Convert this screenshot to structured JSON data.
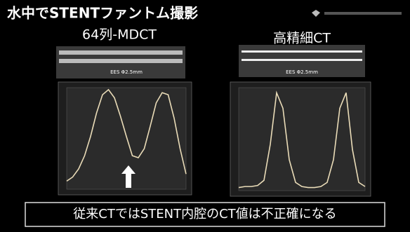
{
  "slide": {
    "title": "水中でSTENTファントム撮影",
    "caption": "従来CTではSTENT内腔のCT値は不正確になる"
  },
  "chart_data": [
    {
      "type": "line",
      "title": "64列-MDCT",
      "subtitle": "EES Φ2.5mm",
      "color": "#eadcb8",
      "x": [
        0,
        1,
        2,
        3,
        4,
        5,
        6,
        7,
        8,
        9,
        10,
        11,
        12,
        13,
        14,
        15,
        16,
        17,
        18,
        19,
        20
      ],
      "values": [
        80,
        120,
        200,
        330,
        520,
        750,
        930,
        980,
        900,
        720,
        520,
        330,
        310,
        400,
        620,
        850,
        950,
        930,
        700,
        400,
        150
      ],
      "xlim": [
        0,
        20
      ],
      "ylim": [
        0,
        1000
      ]
    },
    {
      "type": "line",
      "title": "高精細CT",
      "subtitle": "EES Φ2.5mm",
      "color": "#eadcb8",
      "x": [
        0,
        1,
        2,
        3,
        4,
        5,
        6,
        7,
        8,
        9,
        10,
        11,
        12,
        13,
        14,
        15,
        16,
        17,
        18,
        19,
        20
      ],
      "values": [
        30,
        40,
        40,
        50,
        100,
        450,
        950,
        800,
        300,
        80,
        40,
        30,
        30,
        40,
        80,
        300,
        800,
        950,
        400,
        80,
        40
      ],
      "xlim": [
        0,
        20
      ],
      "ylim": [
        0,
        1000
      ]
    }
  ]
}
